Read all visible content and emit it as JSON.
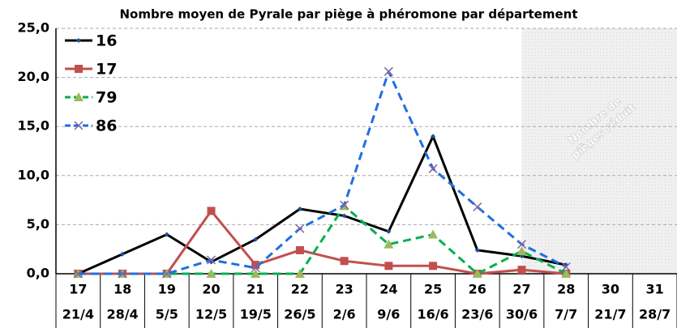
{
  "chart_data": {
    "type": "line",
    "title": "Nombre moyen de Pyrale par piège à phéromone par département",
    "categories": [
      "17",
      "18",
      "19",
      "20",
      "21",
      "22",
      "23",
      "24",
      "25",
      "26",
      "27",
      "28",
      "30",
      "31"
    ],
    "dates": [
      "21/4",
      "28/4",
      "5/5",
      "12/5",
      "19/5",
      "26/5",
      "2/6",
      "9/6",
      "16/6",
      "23/6",
      "30/6",
      "7/7",
      "21/7",
      "28/7"
    ],
    "series": [
      {
        "name": "16",
        "color": "#000000",
        "marker": "diamond",
        "dash": false,
        "values": [
          0,
          2.0,
          4.0,
          1.2,
          3.5,
          6.6,
          5.9,
          4.3,
          14.0,
          2.4,
          1.8,
          0.9,
          null,
          null
        ]
      },
      {
        "name": "17",
        "color": "#c0504d",
        "marker": "square",
        "dash": false,
        "values": [
          0,
          0,
          0,
          6.4,
          0.9,
          2.4,
          1.3,
          0.8,
          0.8,
          0,
          0.4,
          0,
          null,
          null
        ]
      },
      {
        "name": "79",
        "color": "#00b050",
        "marker": "triangle",
        "dash": true,
        "values": [
          0,
          0,
          0,
          0,
          0,
          0,
          6.9,
          3.0,
          4.0,
          0,
          2.3,
          0,
          null,
          null
        ]
      },
      {
        "name": "86",
        "color": "#1f6fe0",
        "marker": "x",
        "dash": true,
        "values": [
          0,
          0,
          0,
          1.4,
          0.6,
          4.6,
          7.0,
          20.6,
          10.7,
          6.8,
          3.0,
          0.7,
          null,
          null
        ]
      }
    ],
    "ylim": [
      0,
      25
    ],
    "yticks": [
      {
        "value": 0,
        "label": "0,0"
      },
      {
        "value": 5,
        "label": "5,0"
      },
      {
        "value": 10,
        "label": "10,0"
      },
      {
        "value": 15,
        "label": "15,0"
      },
      {
        "value": 20,
        "label": "20,0"
      },
      {
        "value": 25,
        "label": "25,0"
      }
    ],
    "grid": true,
    "legend": "upper left",
    "annotation": [
      "Nombre de",
      "pièges réduit"
    ]
  }
}
